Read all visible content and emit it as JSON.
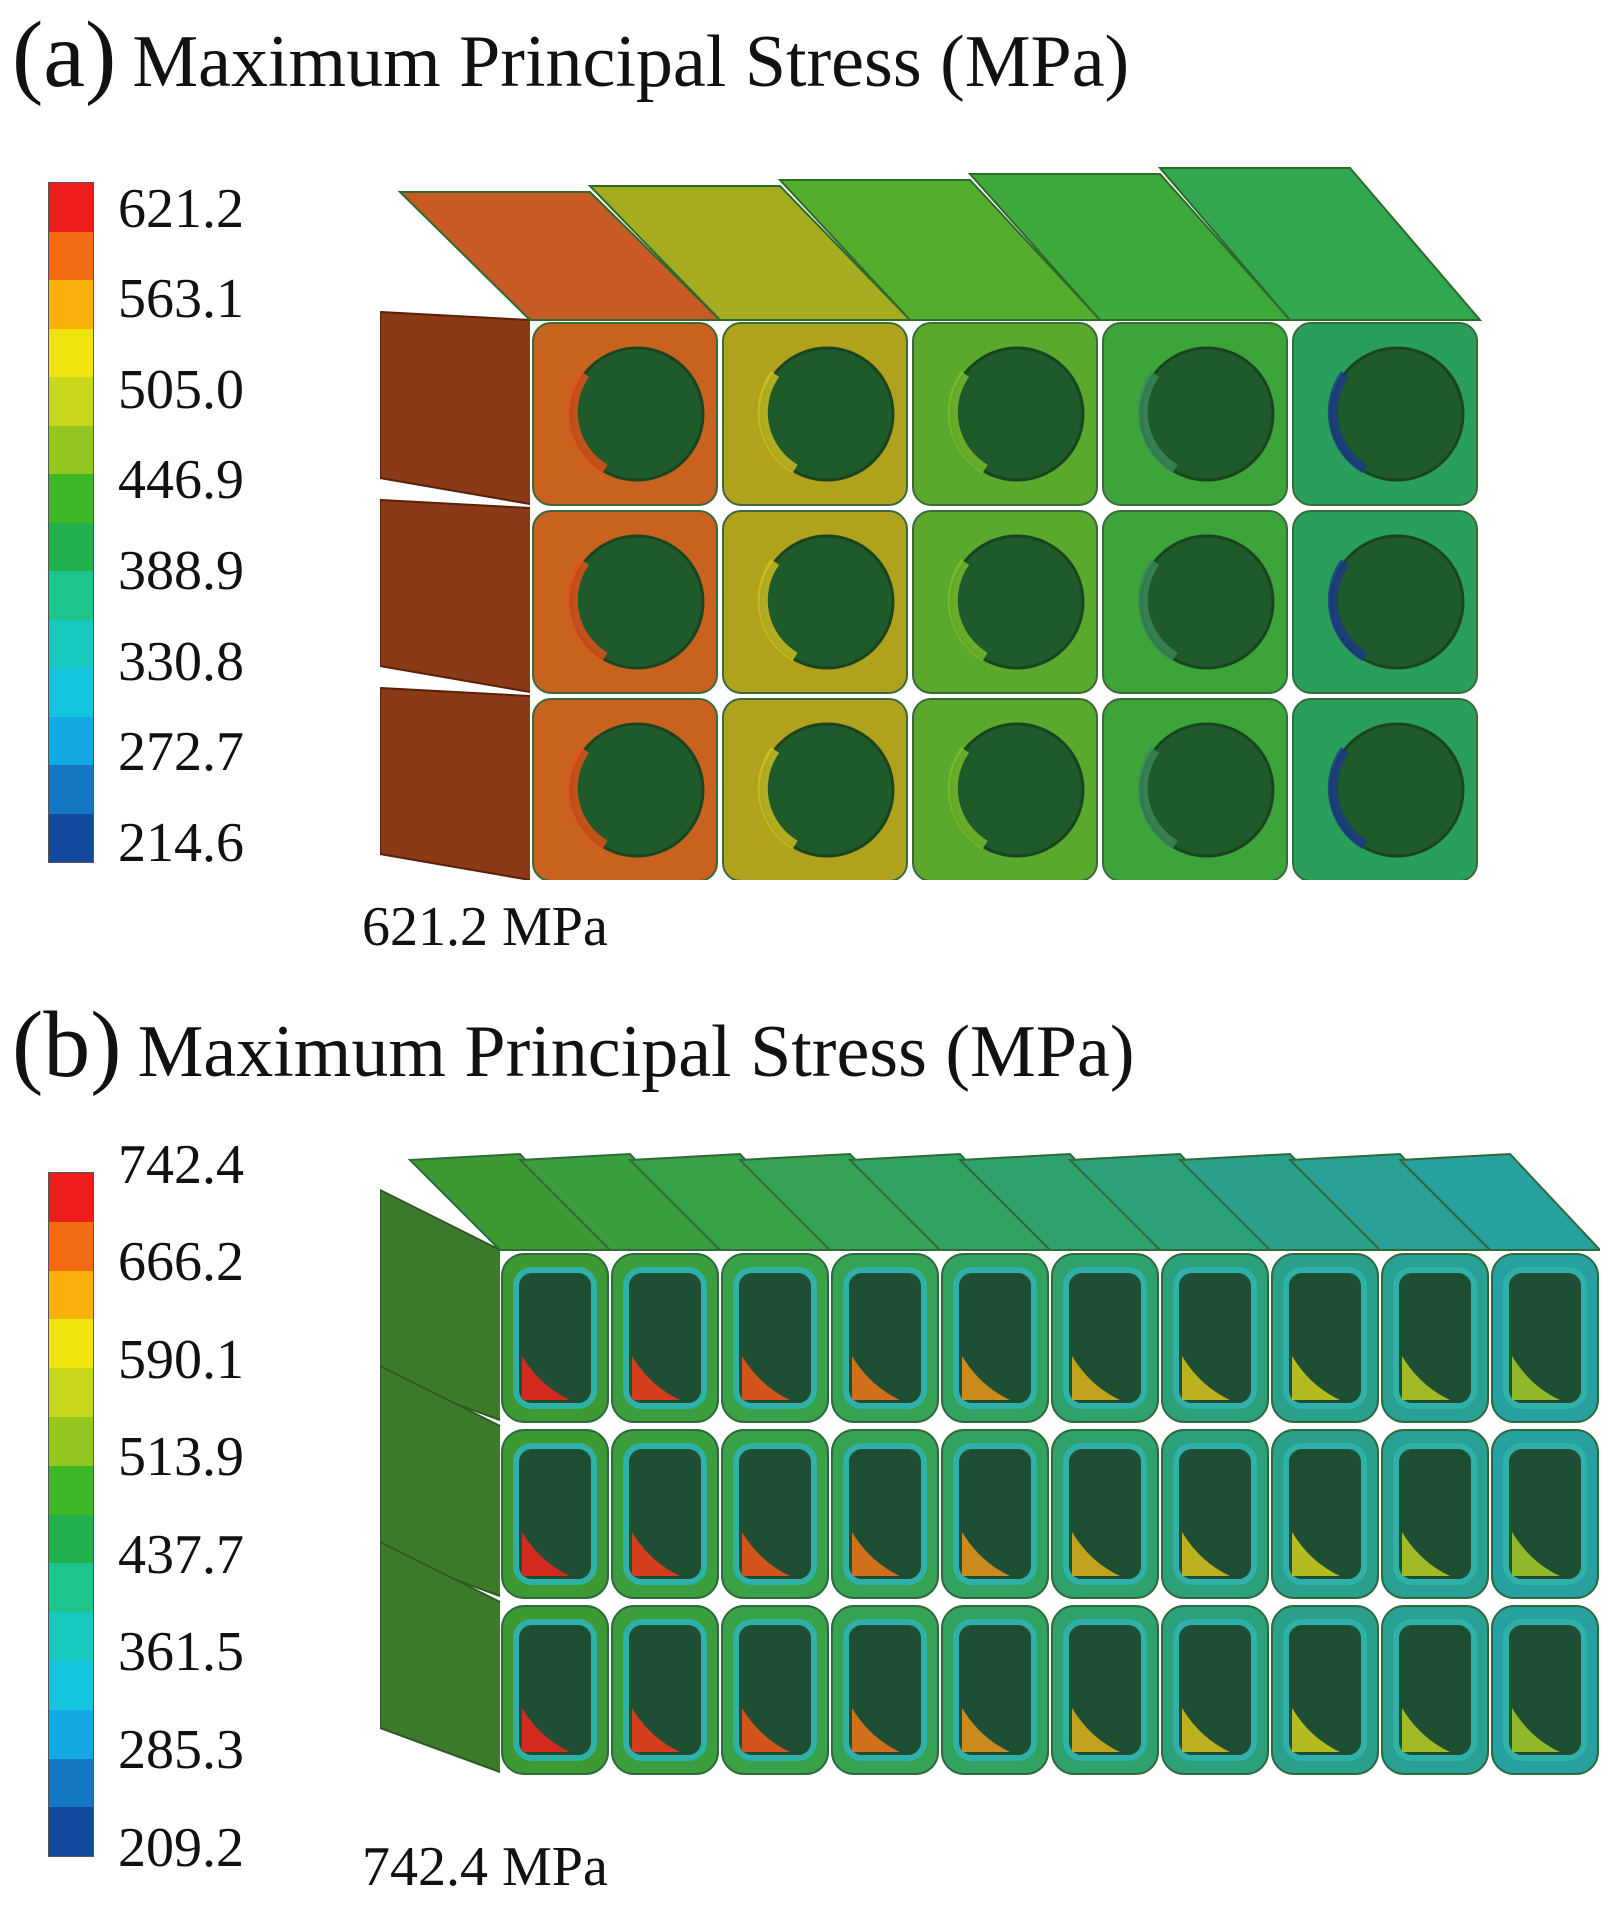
{
  "panels": [
    {
      "tag": "(a)",
      "title": "Maximum Principal Stress (MPa)",
      "legend_labels": [
        "621.2",
        "563.1",
        "505.0",
        "446.9",
        "388.9",
        "330.8",
        "272.7",
        "214.6"
      ],
      "max_label": "621.2 MPa",
      "grid": {
        "columns": 5,
        "rows": 3,
        "cell_shape": "circular hole"
      }
    },
    {
      "tag": "(b)",
      "title": "Maximum Principal Stress (MPa)",
      "legend_labels": [
        "742.4",
        "666.2",
        "590.1",
        "513.9",
        "437.7",
        "361.5",
        "285.3",
        "209.2"
      ],
      "max_label": "742.4 MPa",
      "grid": {
        "columns": 10,
        "rows": 3,
        "cell_shape": "rounded rectangular hole"
      }
    }
  ],
  "colors": {
    "scale": [
      "#ee1c1c",
      "#f26a12",
      "#fbb10c",
      "#f0e40e",
      "#c9d81c",
      "#94c820",
      "#3eb829",
      "#22b04e",
      "#1dc58b",
      "#18cabd",
      "#14c6dd",
      "#14a8e4",
      "#1477c4",
      "#13489c"
    ]
  }
}
